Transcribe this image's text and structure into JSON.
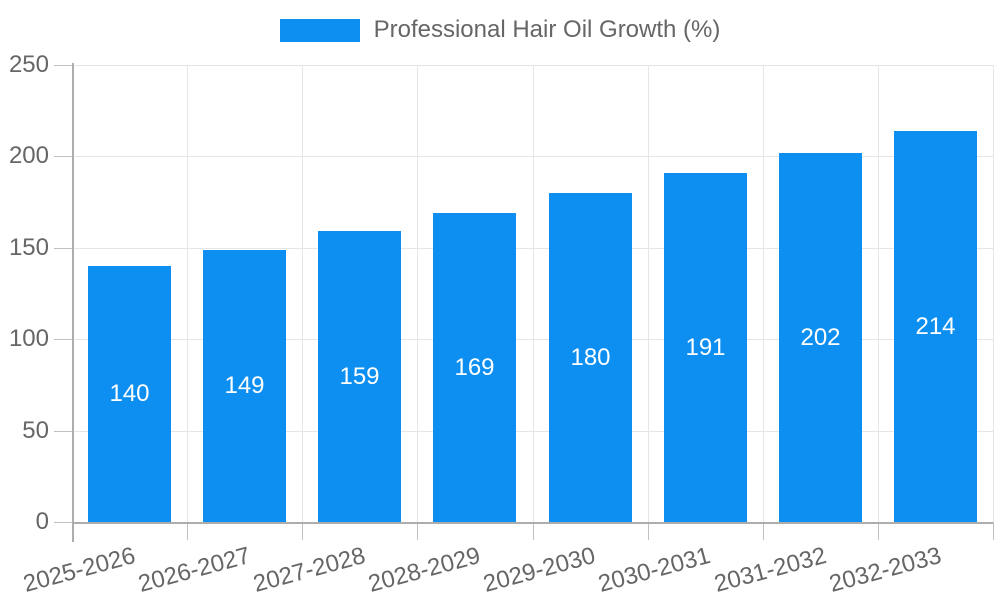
{
  "chart_data": {
    "type": "bar",
    "title": "",
    "legend_position": "top",
    "categories": [
      "2025-2026",
      "2026-2027",
      "2027-2028",
      "2028-2029",
      "2029-2030",
      "2030-2031",
      "2031-2032",
      "2032-2033"
    ],
    "series": [
      {
        "name": "Professional Hair Oil Growth (%)",
        "color": "#0d8ff2",
        "values": [
          140,
          149,
          159,
          169,
          180,
          191,
          202,
          214
        ]
      }
    ],
    "xlabel": "",
    "ylabel": "",
    "ylim": [
      0,
      250
    ],
    "yticks": [
      0,
      50,
      100,
      150,
      200,
      250
    ],
    "grid": "horizontal-and-vertical",
    "value_labels": "inside-center",
    "value_label_color": "#ffffff"
  },
  "style": {
    "background": "#ffffff",
    "grid_color": "#e6e6e6",
    "axis_color": "#adadad",
    "tick_color": "#c0c0c0",
    "label_color": "#666666"
  }
}
